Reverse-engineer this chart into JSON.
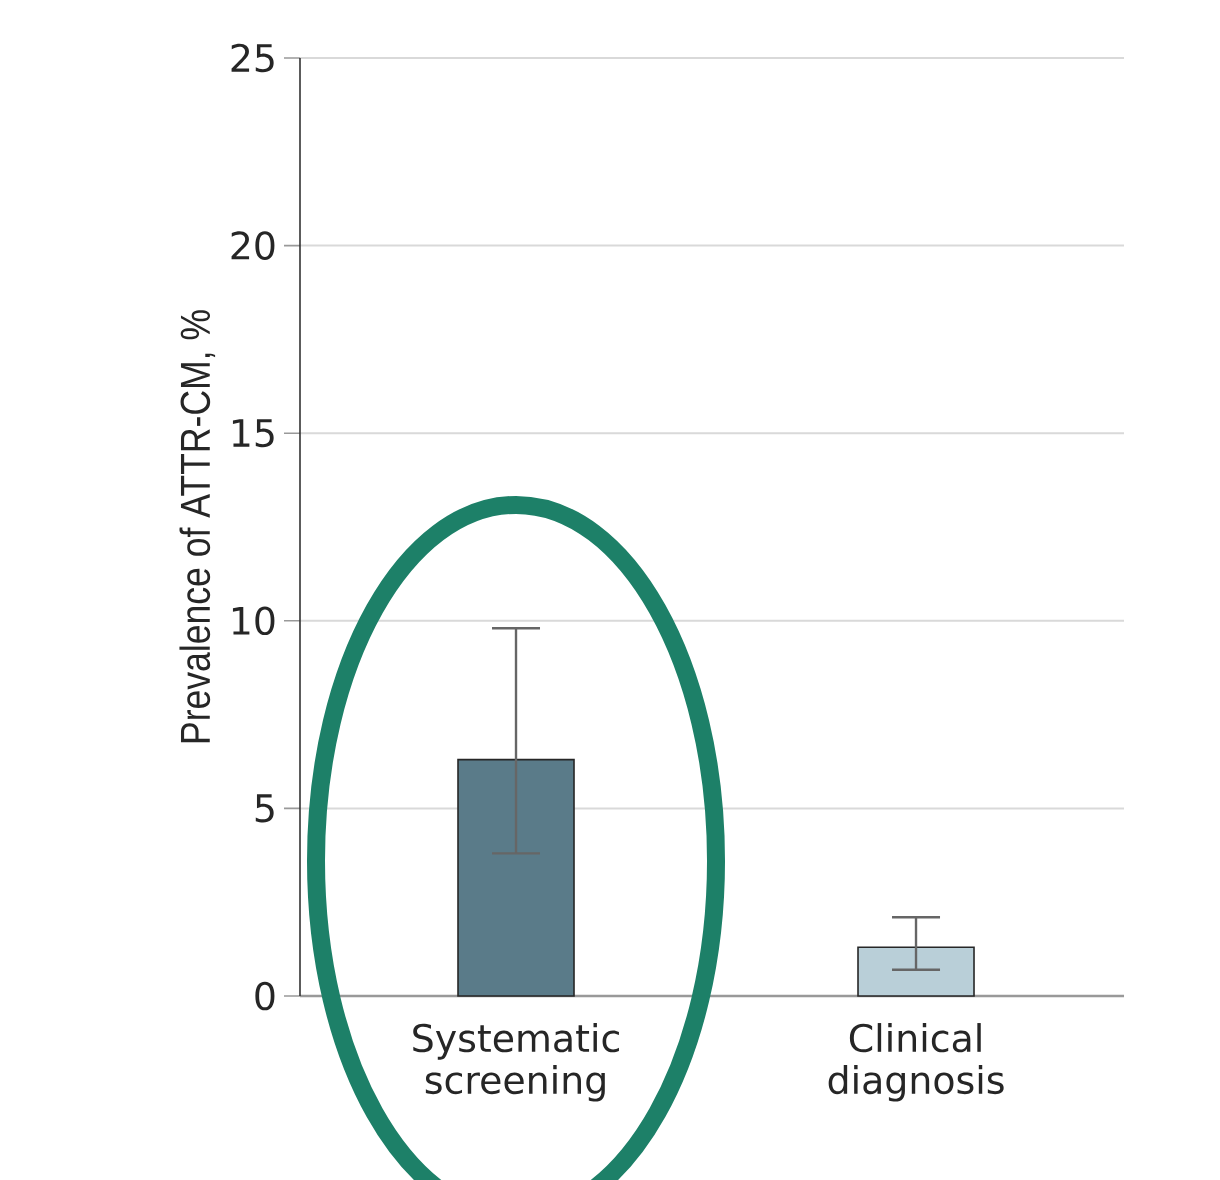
{
  "chart_data": {
    "type": "bar",
    "ylabel": "Prevalence of ATTR-CM, %",
    "categories": [
      "Systematic screening",
      "Clinical diagnosis"
    ],
    "values": [
      6.3,
      1.3
    ],
    "colors": [
      "#5a7b89",
      "#b9cfd8"
    ],
    "errors": [
      [
        3.8,
        9.8
      ],
      [
        0.7,
        2.1
      ]
    ],
    "ylim": [
      0,
      25
    ],
    "yticks": [
      0,
      5,
      10,
      15,
      20,
      25
    ],
    "grid": "y"
  }
}
